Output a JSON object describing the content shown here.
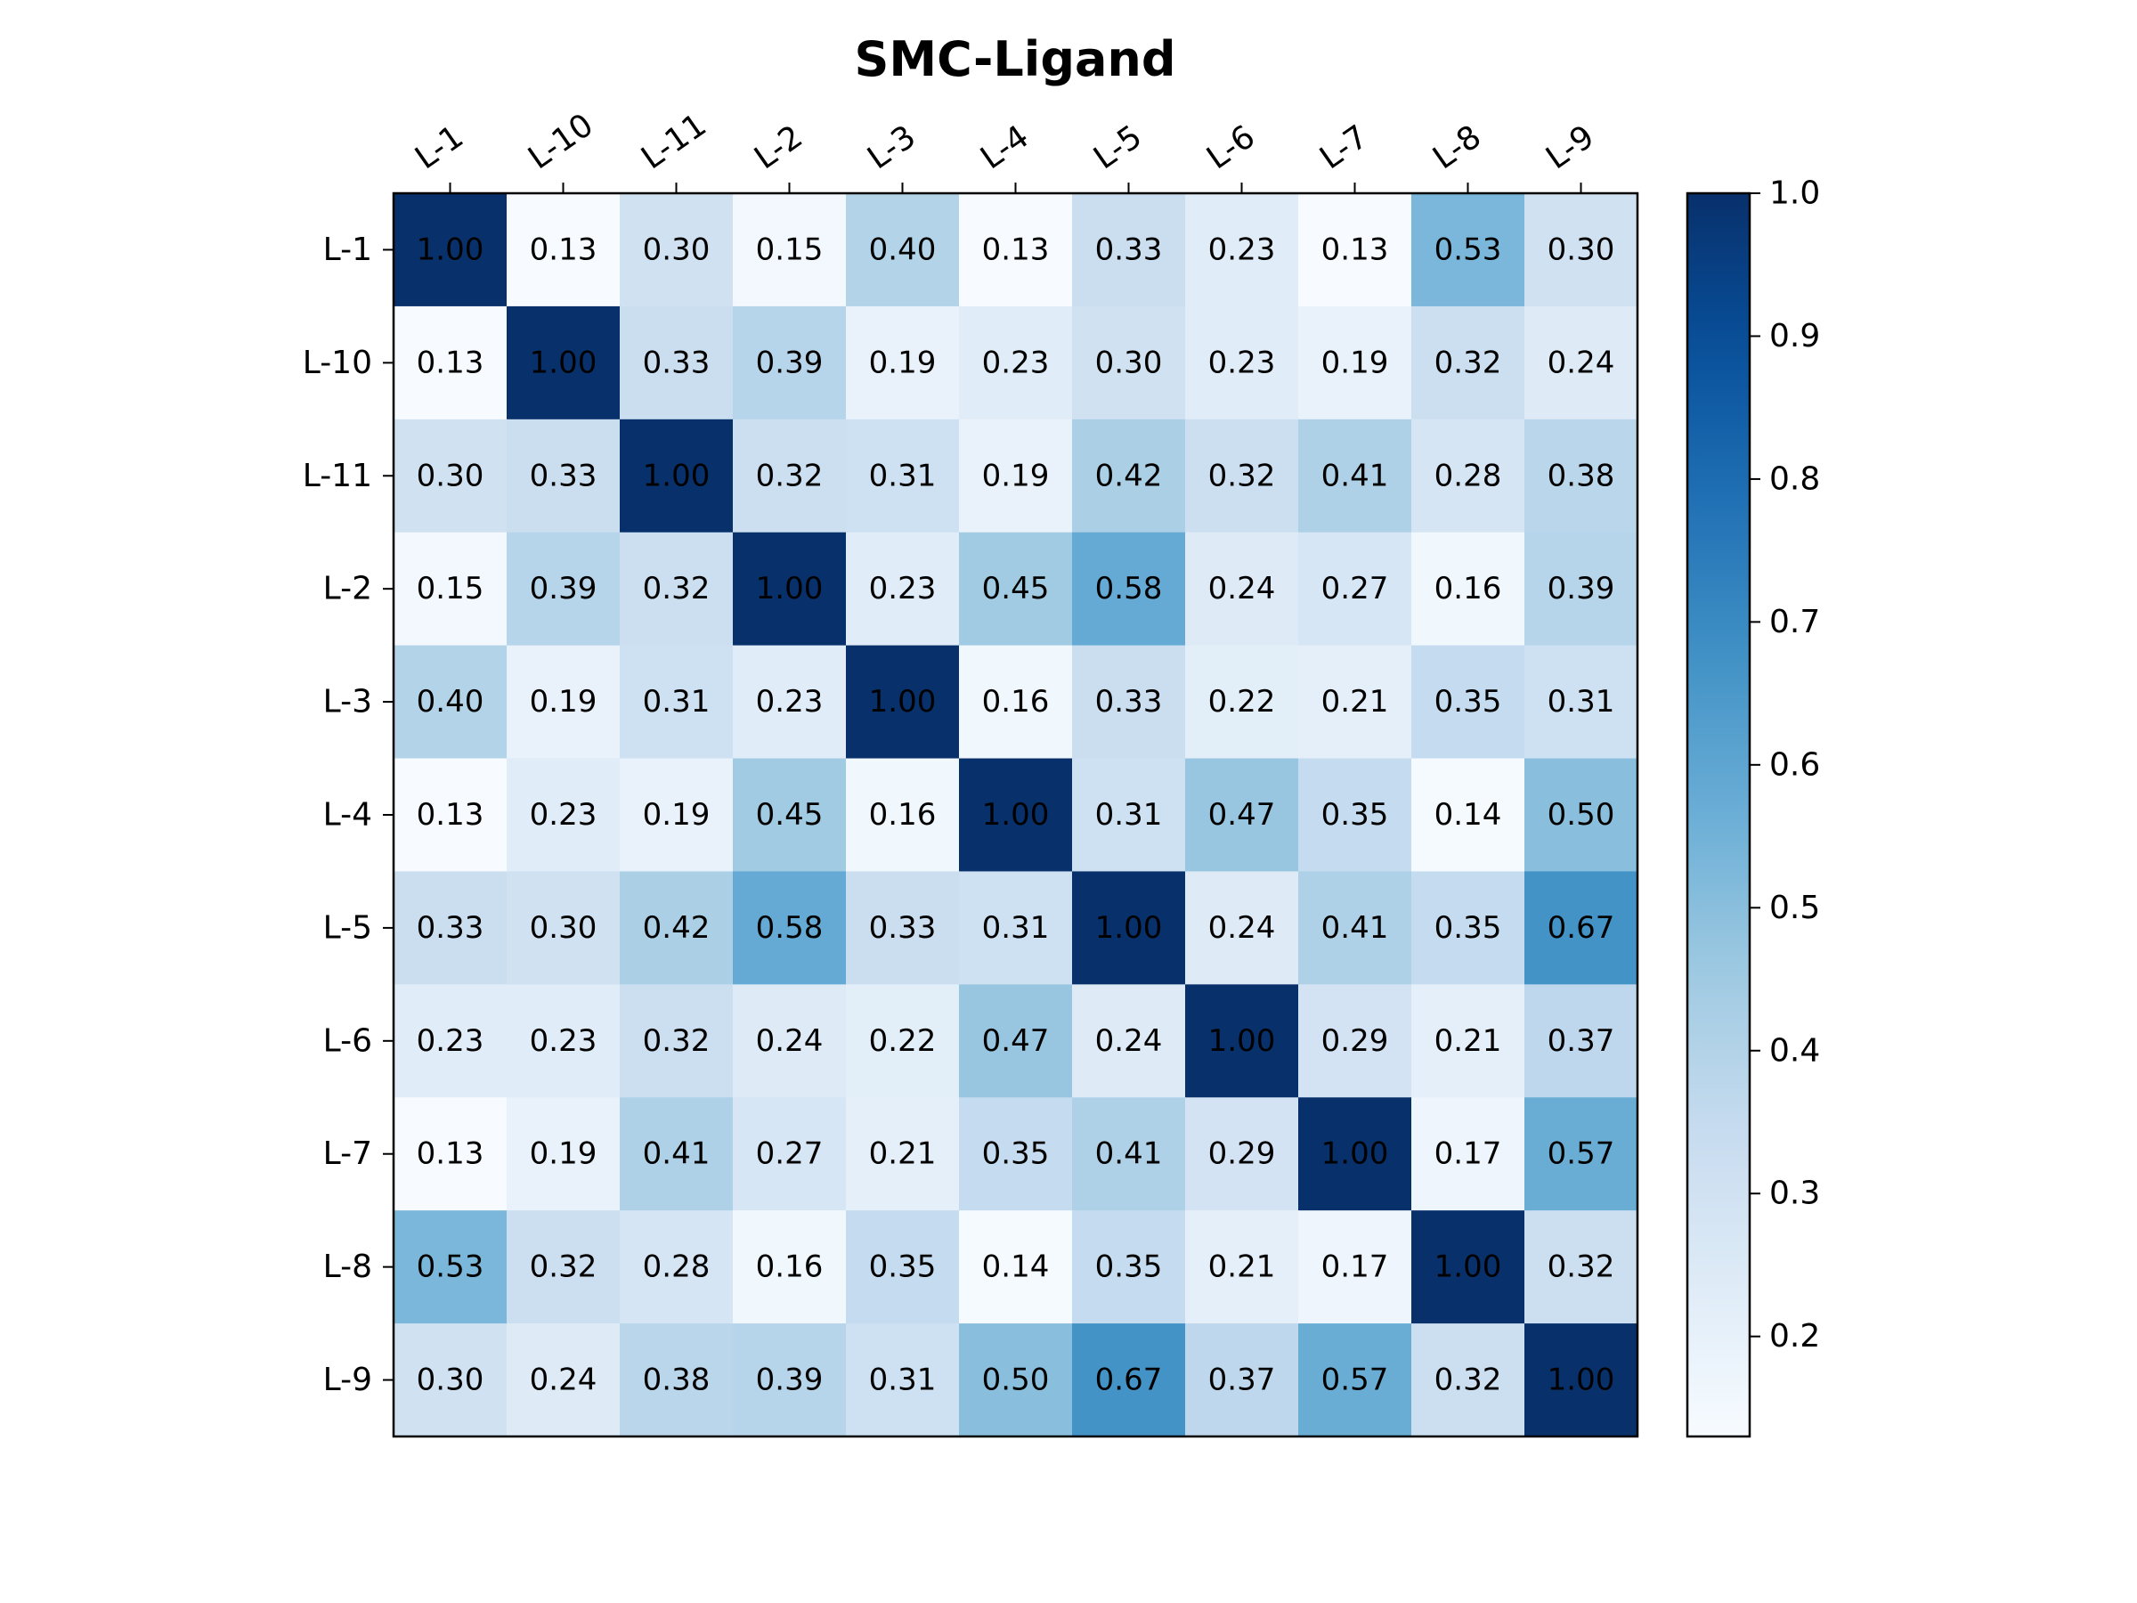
{
  "chart_data": {
    "type": "heatmap",
    "title": "SMC-Ligand",
    "x_categories": [
      "L-1",
      "L-10",
      "L-11",
      "L-2",
      "L-3",
      "L-4",
      "L-5",
      "L-6",
      "L-7",
      "L-8",
      "L-9"
    ],
    "y_categories": [
      "L-1",
      "L-10",
      "L-11",
      "L-2",
      "L-3",
      "L-4",
      "L-5",
      "L-6",
      "L-7",
      "L-8",
      "L-9"
    ],
    "values": [
      [
        1.0,
        0.13,
        0.3,
        0.15,
        0.4,
        0.13,
        0.33,
        0.23,
        0.13,
        0.53,
        0.3
      ],
      [
        0.13,
        1.0,
        0.33,
        0.39,
        0.19,
        0.23,
        0.3,
        0.23,
        0.19,
        0.32,
        0.24
      ],
      [
        0.3,
        0.33,
        1.0,
        0.32,
        0.31,
        0.19,
        0.42,
        0.32,
        0.41,
        0.28,
        0.38
      ],
      [
        0.15,
        0.39,
        0.32,
        1.0,
        0.23,
        0.45,
        0.58,
        0.24,
        0.27,
        0.16,
        0.39
      ],
      [
        0.4,
        0.19,
        0.31,
        0.23,
        1.0,
        0.16,
        0.33,
        0.22,
        0.21,
        0.35,
        0.31
      ],
      [
        0.13,
        0.23,
        0.19,
        0.45,
        0.16,
        1.0,
        0.31,
        0.47,
        0.35,
        0.14,
        0.5
      ],
      [
        0.33,
        0.3,
        0.42,
        0.58,
        0.33,
        0.31,
        1.0,
        0.24,
        0.41,
        0.35,
        0.67
      ],
      [
        0.23,
        0.23,
        0.32,
        0.24,
        0.22,
        0.47,
        0.24,
        1.0,
        0.29,
        0.21,
        0.37
      ],
      [
        0.13,
        0.19,
        0.41,
        0.27,
        0.21,
        0.35,
        0.41,
        0.29,
        1.0,
        0.17,
        0.57
      ],
      [
        0.53,
        0.32,
        0.28,
        0.16,
        0.35,
        0.14,
        0.35,
        0.21,
        0.17,
        1.0,
        0.32
      ],
      [
        0.3,
        0.24,
        0.38,
        0.39,
        0.31,
        0.5,
        0.67,
        0.37,
        0.57,
        0.32,
        1.0
      ]
    ],
    "value_format": "0.00",
    "colormap": "Blues",
    "colorbar": {
      "range": [
        0.13,
        1.0
      ],
      "ticks": [
        0.2,
        0.3,
        0.4,
        0.5,
        0.6,
        0.7,
        0.8,
        0.9,
        1.0
      ],
      "tick_labels": [
        "0.2",
        "0.3",
        "0.4",
        "0.5",
        "0.6",
        "0.7",
        "0.8",
        "0.9",
        "1.0"
      ],
      "placement": "right"
    },
    "x_tick_position": "top",
    "x_tick_rotation_deg": 35,
    "grid": false
  }
}
